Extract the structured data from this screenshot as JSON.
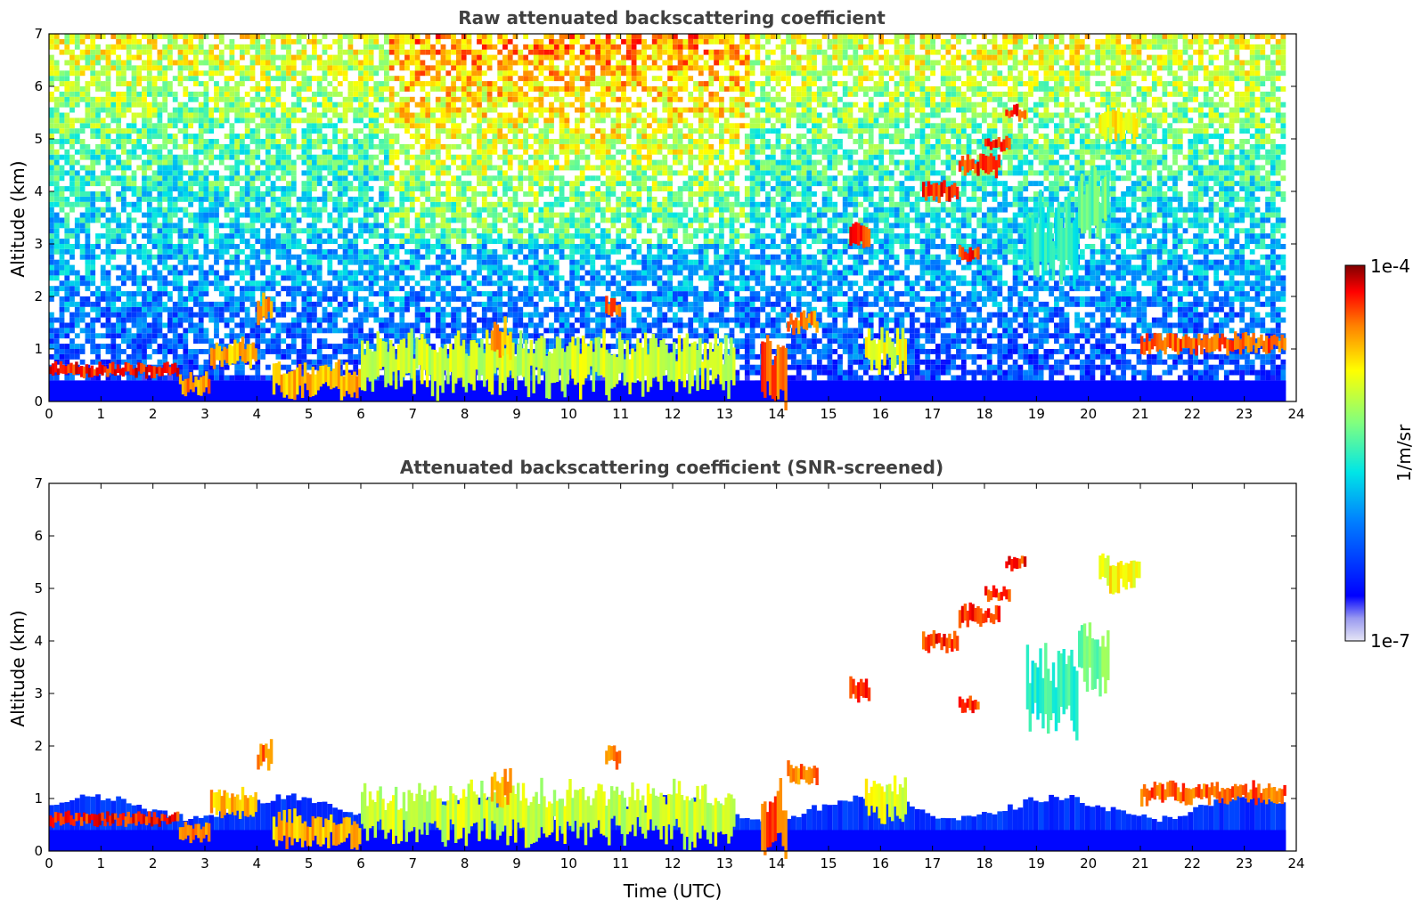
{
  "chart_data": [
    {
      "type": "heatmap",
      "title": "Raw attenuated backscattering coefficient",
      "xlabel": "",
      "ylabel": "Altitude (km)",
      "xlim": [
        0,
        24
      ],
      "ylim": [
        0,
        7
      ],
      "x_ticks": [
        "0",
        "1",
        "2",
        "3",
        "4",
        "5",
        "6",
        "7",
        "8",
        "9",
        "10",
        "11",
        "12",
        "13",
        "14",
        "15",
        "16",
        "17",
        "18",
        "19",
        "20",
        "21",
        "22",
        "23",
        "24"
      ],
      "y_ticks": [
        "0",
        "1",
        "2",
        "3",
        "4",
        "5",
        "6",
        "7"
      ],
      "data_end_time": 23.8,
      "noise": true,
      "layers": [
        {
          "t0": 0.0,
          "t1": 2.5,
          "alt": 0.6,
          "thick": 0.2,
          "level": 0.97
        },
        {
          "t0": 2.5,
          "t1": 3.1,
          "alt": 0.35,
          "thick": 0.3,
          "level": 0.88
        },
        {
          "t0": 3.1,
          "t1": 4.0,
          "alt": 0.9,
          "thick": 0.4,
          "level": 0.85
        },
        {
          "t0": 4.0,
          "t1": 4.3,
          "alt": 1.8,
          "thick": 0.4,
          "level": 0.9
        },
        {
          "t0": 4.3,
          "t1": 6.0,
          "alt": 0.4,
          "thick": 0.5,
          "level": 0.85
        },
        {
          "t0": 6.0,
          "t1": 13.2,
          "alt": 0.7,
          "thick": 0.8,
          "level": 0.72
        },
        {
          "t0": 8.5,
          "t1": 8.9,
          "alt": 1.2,
          "thick": 0.5,
          "level": 0.85
        },
        {
          "t0": 10.7,
          "t1": 11.0,
          "alt": 1.8,
          "thick": 0.3,
          "level": 0.9
        },
        {
          "t0": 13.7,
          "t1": 14.2,
          "alt": 0.6,
          "thick": 1.0,
          "level": 0.92
        },
        {
          "t0": 14.2,
          "t1": 14.8,
          "alt": 1.5,
          "thick": 0.3,
          "level": 0.9
        },
        {
          "t0": 15.4,
          "t1": 15.8,
          "alt": 3.1,
          "thick": 0.4,
          "level": 0.95
        },
        {
          "t0": 16.8,
          "t1": 17.5,
          "alt": 4.0,
          "thick": 0.3,
          "level": 0.96
        },
        {
          "t0": 17.5,
          "t1": 18.3,
          "alt": 4.5,
          "thick": 0.3,
          "level": 0.96
        },
        {
          "t0": 18.0,
          "t1": 18.5,
          "alt": 4.9,
          "thick": 0.2,
          "level": 0.96
        },
        {
          "t0": 18.4,
          "t1": 18.8,
          "alt": 5.5,
          "thick": 0.2,
          "level": 0.96
        },
        {
          "t0": 17.5,
          "t1": 17.9,
          "alt": 2.8,
          "thick": 0.25,
          "level": 0.95
        },
        {
          "t0": 18.8,
          "t1": 19.8,
          "alt": 3.0,
          "thick": 1.2,
          "level": 0.55
        },
        {
          "t0": 19.8,
          "t1": 20.4,
          "alt": 3.7,
          "thick": 1.0,
          "level": 0.62
        },
        {
          "t0": 20.2,
          "t1": 21.0,
          "alt": 5.3,
          "thick": 0.5,
          "level": 0.78
        },
        {
          "t0": 15.7,
          "t1": 16.5,
          "alt": 1.0,
          "thick": 0.6,
          "level": 0.75
        },
        {
          "t0": 21.0,
          "t1": 23.8,
          "alt": 1.1,
          "thick": 0.3,
          "level": 0.92
        }
      ]
    },
    {
      "type": "heatmap",
      "title": "Attenuated backscattering coefficient (SNR-screened)",
      "xlabel": "Time (UTC)",
      "ylabel": "Altitude (km)",
      "xlim": [
        0,
        24
      ],
      "ylim": [
        0,
        7
      ],
      "x_ticks": [
        "0",
        "1",
        "2",
        "3",
        "4",
        "5",
        "6",
        "7",
        "8",
        "9",
        "10",
        "11",
        "12",
        "13",
        "14",
        "15",
        "16",
        "17",
        "18",
        "19",
        "20",
        "21",
        "22",
        "23",
        "24"
      ],
      "y_ticks": [
        "0",
        "1",
        "2",
        "3",
        "4",
        "5",
        "6",
        "7"
      ],
      "data_end_time": 23.8,
      "noise": false,
      "layers": [
        {
          "t0": 0.0,
          "t1": 2.5,
          "alt": 0.6,
          "thick": 0.2,
          "level": 0.97
        },
        {
          "t0": 2.5,
          "t1": 3.1,
          "alt": 0.35,
          "thick": 0.3,
          "level": 0.88
        },
        {
          "t0": 3.1,
          "t1": 4.0,
          "alt": 0.9,
          "thick": 0.4,
          "level": 0.85
        },
        {
          "t0": 4.0,
          "t1": 4.3,
          "alt": 1.8,
          "thick": 0.4,
          "level": 0.9
        },
        {
          "t0": 4.3,
          "t1": 6.0,
          "alt": 0.4,
          "thick": 0.5,
          "level": 0.85
        },
        {
          "t0": 6.0,
          "t1": 13.2,
          "alt": 0.7,
          "thick": 0.8,
          "level": 0.72
        },
        {
          "t0": 8.5,
          "t1": 8.9,
          "alt": 1.2,
          "thick": 0.5,
          "level": 0.85
        },
        {
          "t0": 10.7,
          "t1": 11.0,
          "alt": 1.8,
          "thick": 0.3,
          "level": 0.9
        },
        {
          "t0": 13.7,
          "t1": 14.2,
          "alt": 0.6,
          "thick": 1.0,
          "level": 0.92
        },
        {
          "t0": 14.2,
          "t1": 14.8,
          "alt": 1.5,
          "thick": 0.3,
          "level": 0.9
        },
        {
          "t0": 15.4,
          "t1": 15.8,
          "alt": 3.1,
          "thick": 0.4,
          "level": 0.95
        },
        {
          "t0": 16.8,
          "t1": 17.5,
          "alt": 4.0,
          "thick": 0.3,
          "level": 0.96
        },
        {
          "t0": 17.5,
          "t1": 18.3,
          "alt": 4.5,
          "thick": 0.3,
          "level": 0.96
        },
        {
          "t0": 18.0,
          "t1": 18.5,
          "alt": 4.9,
          "thick": 0.2,
          "level": 0.96
        },
        {
          "t0": 18.4,
          "t1": 18.8,
          "alt": 5.5,
          "thick": 0.2,
          "level": 0.96
        },
        {
          "t0": 17.5,
          "t1": 17.9,
          "alt": 2.8,
          "thick": 0.25,
          "level": 0.95
        },
        {
          "t0": 18.8,
          "t1": 19.8,
          "alt": 3.0,
          "thick": 1.2,
          "level": 0.55
        },
        {
          "t0": 19.8,
          "t1": 20.4,
          "alt": 3.7,
          "thick": 1.0,
          "level": 0.62
        },
        {
          "t0": 20.2,
          "t1": 21.0,
          "alt": 5.3,
          "thick": 0.5,
          "level": 0.78
        },
        {
          "t0": 15.7,
          "t1": 16.5,
          "alt": 1.0,
          "thick": 0.6,
          "level": 0.75
        },
        {
          "t0": 21.0,
          "t1": 23.8,
          "alt": 1.1,
          "thick": 0.3,
          "level": 0.92
        }
      ]
    }
  ],
  "colorbar": {
    "label": "1/m/sr",
    "min_label": "1e-7",
    "max_label": "1e-4",
    "scale": "log",
    "colormap": "jet",
    "range": [
      1e-07,
      0.0001
    ]
  }
}
